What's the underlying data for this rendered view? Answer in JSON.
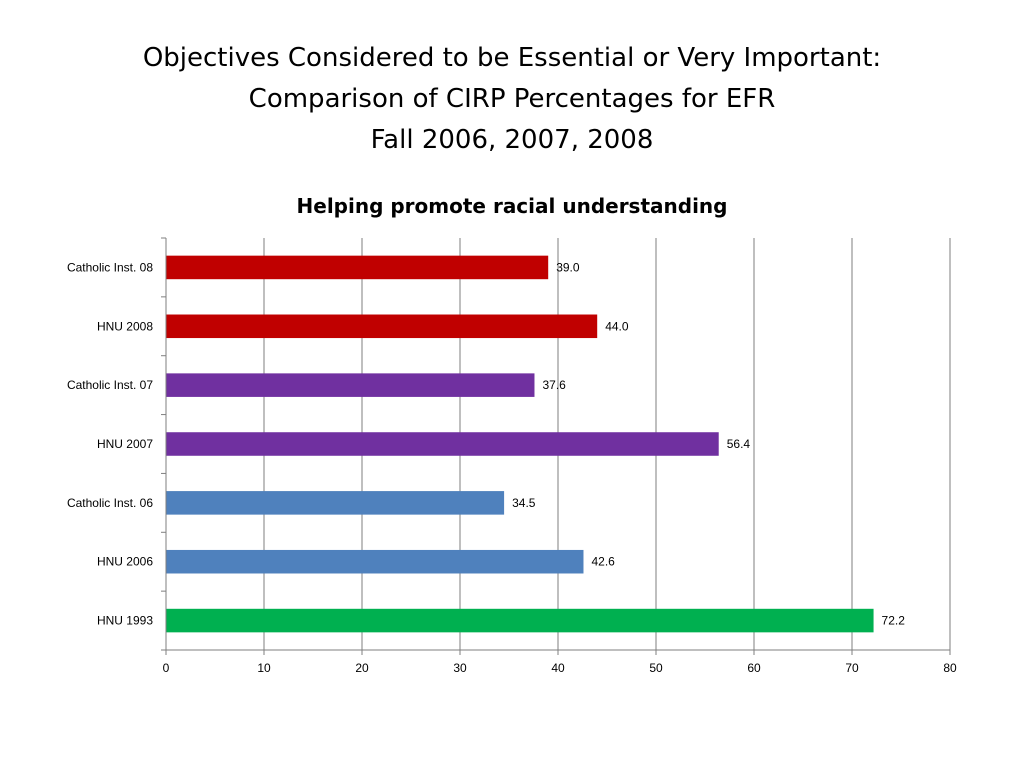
{
  "slide": {
    "title_lines": [
      "Objectives Considered to be Essential or Very Important:",
      "Comparison of CIRP Percentages for EFR",
      "Fall 2006, 2007, 2008"
    ]
  },
  "colors": {
    "red": "#C00000",
    "purple": "#7030A0",
    "blue": "#4F81BD",
    "green": "#00B050",
    "gridline": "#7F7F7F",
    "axis": "#7F7F7F"
  },
  "chart_data": {
    "type": "bar",
    "orientation": "horizontal",
    "title": "Helping promote racial understanding",
    "xlabel": "",
    "ylabel": "",
    "xlim": [
      0,
      80
    ],
    "x_ticks": [
      0,
      10,
      20,
      30,
      40,
      50,
      60,
      70,
      80
    ],
    "grid": true,
    "legend": "none",
    "categories": [
      "Catholic Inst. 08",
      "HNU 2008",
      "Catholic Inst. 07",
      "HNU 2007",
      "Catholic Inst. 06",
      "HNU 2006",
      "HNU 1993"
    ],
    "values": [
      39.0,
      44.0,
      37.6,
      56.4,
      34.5,
      42.6,
      72.2
    ],
    "value_labels": [
      "39.0",
      "44.0",
      "37.6",
      "56.4",
      "34.5",
      "42.6",
      "72.2"
    ],
    "bar_colors": [
      "#C00000",
      "#C00000",
      "#7030A0",
      "#7030A0",
      "#4F81BD",
      "#4F81BD",
      "#00B050"
    ]
  }
}
